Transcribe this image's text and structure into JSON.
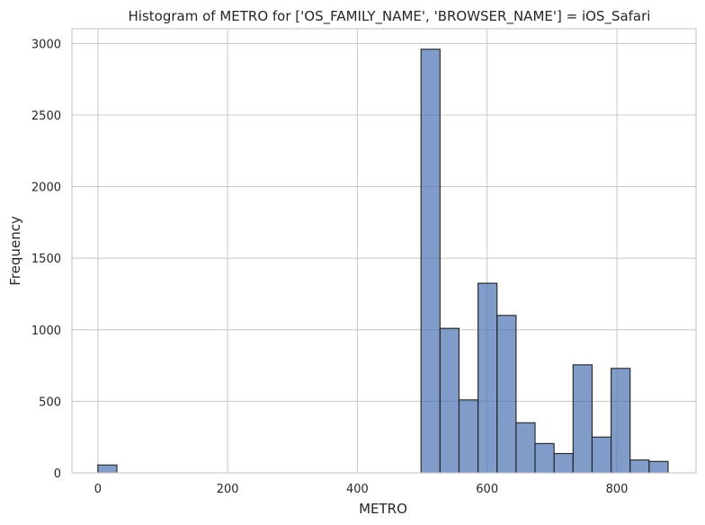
{
  "chart_data": {
    "type": "bar",
    "title": "Histogram of METRO for ['OS_FAMILY_NAME', 'BROWSER_NAME'] = iOS_Safari",
    "xlabel": "METRO",
    "ylabel": "Frequency",
    "xlim": [
      -40,
      922
    ],
    "ylim": [
      0,
      3103
    ],
    "xticks": [
      0,
      200,
      400,
      600,
      800
    ],
    "yticks": [
      0,
      500,
      1000,
      1500,
      2000,
      2500,
      3000
    ],
    "grid": true,
    "bin_width": 29.3,
    "bins": [
      {
        "x0": 0.0,
        "count": 55
      },
      {
        "x0": 29.3,
        "count": 0
      },
      {
        "x0": 58.6,
        "count": 0
      },
      {
        "x0": 87.9,
        "count": 0
      },
      {
        "x0": 117.2,
        "count": 0
      },
      {
        "x0": 146.5,
        "count": 0
      },
      {
        "x0": 175.8,
        "count": 0
      },
      {
        "x0": 205.1,
        "count": 0
      },
      {
        "x0": 234.4,
        "count": 0
      },
      {
        "x0": 263.7,
        "count": 0
      },
      {
        "x0": 293.0,
        "count": 0
      },
      {
        "x0": 322.3,
        "count": 0
      },
      {
        "x0": 351.6,
        "count": 0
      },
      {
        "x0": 380.9,
        "count": 0
      },
      {
        "x0": 410.2,
        "count": 0
      },
      {
        "x0": 439.5,
        "count": 0
      },
      {
        "x0": 468.8,
        "count": 0
      },
      {
        "x0": 498.1,
        "count": 2960
      },
      {
        "x0": 527.4,
        "count": 1010
      },
      {
        "x0": 556.7,
        "count": 510
      },
      {
        "x0": 586.0,
        "count": 1325
      },
      {
        "x0": 615.3,
        "count": 1100
      },
      {
        "x0": 644.6,
        "count": 350
      },
      {
        "x0": 673.9,
        "count": 205
      },
      {
        "x0": 703.2,
        "count": 135
      },
      {
        "x0": 732.5,
        "count": 755
      },
      {
        "x0": 761.8,
        "count": 250
      },
      {
        "x0": 791.1,
        "count": 730
      },
      {
        "x0": 820.4,
        "count": 90
      },
      {
        "x0": 849.7,
        "count": 80
      }
    ]
  }
}
